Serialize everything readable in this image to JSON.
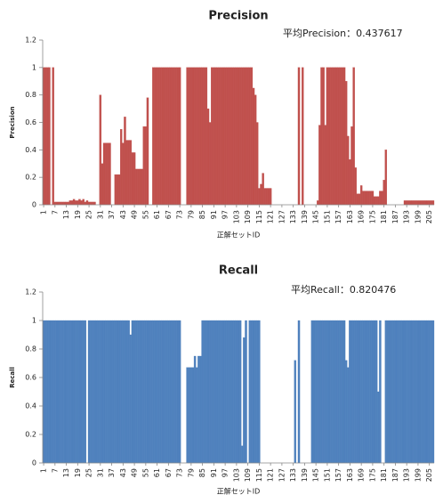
{
  "chart_data": [
    {
      "type": "bar",
      "title": "Precision",
      "annotation": "平均Precision：0.437617",
      "ylabel": "Precision",
      "xlabel": "正解セットID",
      "color": "#c0504d",
      "x": [
        1,
        2,
        3,
        4,
        5,
        6,
        7,
        8,
        9,
        10,
        11,
        12,
        13,
        14,
        15,
        16,
        17,
        18,
        19,
        20,
        21,
        22,
        23,
        24,
        25,
        26,
        27,
        28,
        29,
        30,
        31,
        32,
        33,
        34,
        35,
        36,
        37,
        38,
        39,
        40,
        41,
        42,
        43,
        44,
        45,
        46,
        47,
        48,
        49,
        50,
        51,
        52,
        53,
        54,
        55,
        56,
        57,
        58,
        59,
        60,
        61,
        62,
        63,
        64,
        65,
        66,
        67,
        68,
        69,
        70,
        71,
        72,
        73,
        74,
        75,
        76,
        77,
        78,
        79,
        80,
        81,
        82,
        83,
        84,
        85,
        86,
        87,
        88,
        89,
        90,
        91,
        92,
        93,
        94,
        95,
        96,
        97,
        98,
        99,
        100,
        101,
        102,
        103,
        104,
        105,
        106,
        107,
        108,
        109,
        110,
        111,
        112,
        113,
        114,
        115,
        116,
        117,
        118,
        119,
        120,
        121,
        122,
        123,
        124,
        125,
        126,
        127,
        128,
        129,
        130,
        131,
        132,
        133,
        134,
        135,
        136,
        137,
        138,
        139,
        140,
        141,
        142,
        143,
        144,
        145,
        146,
        147,
        148,
        149,
        150,
        151,
        152,
        153,
        154,
        155,
        156,
        157,
        158,
        159,
        160,
        161,
        162,
        163,
        164,
        165,
        166,
        167,
        168,
        169,
        170,
        171,
        172,
        173,
        174,
        175,
        176,
        177,
        178,
        179,
        180,
        181,
        182,
        183,
        184,
        185,
        186,
        187,
        188,
        189,
        190,
        191,
        192,
        193,
        194,
        195,
        196,
        197,
        198,
        199,
        200,
        201,
        202,
        203,
        204,
        205,
        206,
        207
      ],
      "values": [
        1,
        1,
        1,
        1,
        0,
        1,
        0.02,
        0.02,
        0.02,
        0.02,
        0.02,
        0.02,
        0.02,
        0.02,
        0.03,
        0.03,
        0.04,
        0.03,
        0.03,
        0.04,
        0.03,
        0.04,
        0.02,
        0.03,
        0.02,
        0.02,
        0.02,
        0.02,
        0,
        0,
        0.8,
        0.3,
        0.45,
        0.45,
        0.45,
        0.45,
        0,
        0,
        0.22,
        0.22,
        0.22,
        0.55,
        0.45,
        0.64,
        0.47,
        0.47,
        0.47,
        0.38,
        0.38,
        0.26,
        0.26,
        0.26,
        0.26,
        0.57,
        0.57,
        0.78,
        0,
        0,
        1,
        1,
        1,
        1,
        1,
        1,
        1,
        1,
        1,
        1,
        1,
        1,
        1,
        1,
        1,
        0,
        0,
        0,
        1,
        1,
        1,
        1,
        1,
        1,
        1,
        1,
        1,
        1,
        1,
        0.7,
        0.6,
        1,
        1,
        1,
        1,
        1,
        1,
        1,
        1,
        1,
        1,
        1,
        1,
        1,
        1,
        1,
        1,
        1,
        1,
        1,
        1,
        1,
        1,
        0.85,
        0.8,
        0.6,
        0.12,
        0.15,
        0.23,
        0.12,
        0.12,
        0.12,
        0.12,
        0,
        0,
        0,
        0,
        0,
        0,
        0,
        0,
        0,
        0,
        0,
        0,
        0,
        0,
        1,
        0,
        1,
        0,
        0,
        0,
        0,
        0,
        0,
        0,
        0.03,
        0.58,
        1,
        1,
        0.58,
        1,
        1,
        1,
        1,
        1,
        1,
        1,
        1,
        1,
        1,
        0.9,
        0.5,
        0.33,
        0.57,
        1,
        0.27,
        0.08,
        0.08,
        0.14,
        0.1,
        0.1,
        0.1,
        0.1,
        0.1,
        0.1,
        0.06,
        0.06,
        0.06,
        0.1,
        0.1,
        0.18,
        0.4,
        0,
        0,
        0,
        0,
        0,
        0,
        0,
        0,
        0,
        0.03,
        0.03,
        0.03,
        0.03,
        0.03,
        0.03,
        0.03,
        0.03,
        0.03,
        0.03,
        0.03,
        0.03,
        0.03,
        0.03,
        0.03,
        0.03
      ],
      "xlim": [
        0.5,
        207.5
      ],
      "xticks": [
        1,
        7,
        13,
        19,
        25,
        31,
        37,
        43,
        49,
        55,
        61,
        67,
        73,
        79,
        85,
        91,
        97,
        103,
        109,
        115,
        121,
        127,
        133,
        139,
        145,
        151,
        157,
        163,
        169,
        175,
        181,
        187,
        193,
        199,
        205
      ],
      "ylim": [
        0,
        1.2
      ],
      "yticks": [
        0,
        0.2,
        0.4,
        0.6,
        0.8,
        1,
        1.2
      ]
    },
    {
      "type": "bar",
      "title": "Recall",
      "annotation": "平均Recall：0.820476",
      "ylabel": "Recall",
      "xlabel": "正解セットID",
      "color": "#4f81bd",
      "x": [
        1,
        2,
        3,
        4,
        5,
        6,
        7,
        8,
        9,
        10,
        11,
        12,
        13,
        14,
        15,
        16,
        17,
        18,
        19,
        20,
        21,
        22,
        23,
        24,
        25,
        26,
        27,
        28,
        29,
        30,
        31,
        32,
        33,
        34,
        35,
        36,
        37,
        38,
        39,
        40,
        41,
        42,
        43,
        44,
        45,
        46,
        47,
        48,
        49,
        50,
        51,
        52,
        53,
        54,
        55,
        56,
        57,
        58,
        59,
        60,
        61,
        62,
        63,
        64,
        65,
        66,
        67,
        68,
        69,
        70,
        71,
        72,
        73,
        74,
        75,
        76,
        77,
        78,
        79,
        80,
        81,
        82,
        83,
        84,
        85,
        86,
        87,
        88,
        89,
        90,
        91,
        92,
        93,
        94,
        95,
        96,
        97,
        98,
        99,
        100,
        101,
        102,
        103,
        104,
        105,
        106,
        107,
        108,
        109,
        110,
        111,
        112,
        113,
        114,
        115,
        116,
        117,
        118,
        119,
        120,
        121,
        122,
        123,
        124,
        125,
        126,
        127,
        128,
        129,
        130,
        131,
        132,
        133,
        134,
        135,
        136,
        137,
        138,
        139,
        140,
        141,
        142,
        143,
        144,
        145,
        146,
        147,
        148,
        149,
        150,
        151,
        152,
        153,
        154,
        155,
        156,
        157,
        158,
        159,
        160,
        161,
        162,
        163,
        164,
        165,
        166,
        167,
        168,
        169,
        170,
        171,
        172,
        173,
        174,
        175,
        176,
        177,
        178,
        179,
        180,
        181,
        182,
        183,
        184,
        185,
        186,
        187,
        188,
        189,
        190,
        191,
        192,
        193,
        194,
        195,
        196,
        197,
        198,
        199,
        200,
        201,
        202,
        203,
        204,
        205,
        206,
        207
      ],
      "values": [
        1,
        1,
        1,
        1,
        1,
        1,
        1,
        1,
        1,
        1,
        1,
        1,
        1,
        1,
        1,
        1,
        1,
        1,
        1,
        1,
        1,
        1,
        1,
        0,
        1,
        1,
        1,
        1,
        1,
        1,
        1,
        1,
        1,
        1,
        1,
        1,
        1,
        1,
        1,
        1,
        1,
        1,
        1,
        1,
        1,
        1,
        0.9,
        1,
        1,
        1,
        1,
        1,
        1,
        1,
        1,
        1,
        1,
        1,
        1,
        1,
        1,
        1,
        1,
        1,
        1,
        1,
        1,
        1,
        1,
        1,
        1,
        1,
        1,
        0,
        0,
        0,
        0.67,
        0.67,
        0.67,
        0.67,
        0.75,
        0.67,
        0.75,
        0.75,
        1,
        1,
        1,
        1,
        1,
        1,
        1,
        1,
        1,
        1,
        1,
        1,
        1,
        1,
        1,
        1,
        1,
        1,
        1,
        1,
        1,
        0.12,
        0.88,
        1,
        0,
        1,
        1,
        1,
        1,
        1,
        1,
        0,
        0,
        0,
        0,
        0,
        0,
        0,
        0,
        0,
        0,
        0,
        0,
        0,
        0,
        0,
        0,
        0,
        0,
        0.72,
        0,
        1,
        0,
        0,
        0,
        0,
        0,
        0,
        1,
        1,
        1,
        1,
        1,
        1,
        1,
        1,
        1,
        1,
        1,
        1,
        1,
        1,
        1,
        1,
        1,
        1,
        0.72,
        0.67,
        1,
        1,
        1,
        1,
        1,
        1,
        1,
        1,
        1,
        1,
        1,
        1,
        1,
        1,
        1,
        0.5,
        1,
        0,
        0,
        1,
        1,
        1,
        1,
        1,
        1,
        1,
        1,
        1,
        1,
        1,
        1,
        1,
        1,
        1,
        1,
        1,
        1,
        1,
        1,
        1,
        1,
        1,
        1,
        1,
        1
      ],
      "xlim": [
        0.5,
        207.5
      ],
      "xticks": [
        1,
        7,
        13,
        19,
        25,
        31,
        37,
        43,
        49,
        55,
        61,
        67,
        73,
        79,
        85,
        91,
        97,
        103,
        109,
        115,
        121,
        127,
        133,
        139,
        145,
        151,
        157,
        163,
        169,
        175,
        181,
        187,
        193,
        199,
        205
      ],
      "ylim": [
        0,
        1.2
      ],
      "yticks": [
        0,
        0.2,
        0.4,
        0.6,
        0.8,
        1,
        1.2
      ]
    }
  ]
}
